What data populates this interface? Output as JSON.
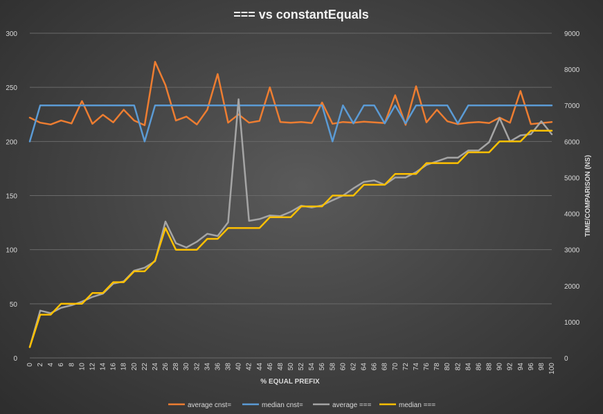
{
  "chart_data": {
    "type": "line",
    "title": "=== vs constantEquals",
    "xlabel": "% EQUAL PREFIX",
    "ylabel": "",
    "y2label": "TIME/COMPARISON (NS)",
    "x": [
      0,
      2,
      4,
      6,
      8,
      10,
      12,
      14,
      16,
      18,
      20,
      22,
      24,
      26,
      28,
      30,
      32,
      34,
      36,
      38,
      40,
      42,
      44,
      46,
      48,
      50,
      52,
      54,
      56,
      58,
      60,
      62,
      64,
      66,
      68,
      70,
      72,
      74,
      76,
      78,
      80,
      82,
      84,
      86,
      88,
      90,
      92,
      94,
      96,
      98,
      100
    ],
    "ylim": [
      0,
      300
    ],
    "y_ticks": [
      0,
      50,
      100,
      150,
      200,
      250,
      300
    ],
    "y2lim": [
      0,
      9000
    ],
    "y2_ticks": [
      0,
      1000,
      2000,
      3000,
      4000,
      5000,
      6000,
      7000,
      8000,
      9000
    ],
    "grid": true,
    "legend_position": "bottom",
    "series": [
      {
        "name": "average cnst=",
        "axis": "right",
        "color": "#ed7d31",
        "values": [
          6660,
          6520,
          6470,
          6580,
          6500,
          7120,
          6490,
          6740,
          6530,
          6880,
          6580,
          6450,
          8210,
          7560,
          6580,
          6690,
          6470,
          6880,
          7870,
          6520,
          6750,
          6520,
          6570,
          7500,
          6540,
          6520,
          6540,
          6510,
          7080,
          6490,
          6540,
          6520,
          6550,
          6530,
          6510,
          7280,
          6460,
          7530,
          6530,
          6880,
          6560,
          6480,
          6520,
          6540,
          6510,
          6660,
          6520,
          7400,
          6480,
          6510,
          6540
        ]
      },
      {
        "name": "median cnst=",
        "axis": "right",
        "color": "#5b9bd5",
        "values": [
          6000,
          7000,
          7000,
          7000,
          7000,
          7000,
          7000,
          7000,
          7000,
          7000,
          7000,
          6000,
          7000,
          7000,
          7000,
          7000,
          7000,
          7000,
          7000,
          7000,
          7000,
          7000,
          7000,
          7000,
          7000,
          7000,
          7000,
          7000,
          7000,
          6000,
          7000,
          6500,
          7000,
          7000,
          6500,
          7000,
          6500,
          7000,
          7000,
          7000,
          7000,
          6500,
          7000,
          7000,
          7000,
          7000,
          7000,
          7000,
          7000,
          7000,
          7000
        ]
      },
      {
        "name": "average ===",
        "axis": "right",
        "color": "#a5a5a5",
        "values": [
          300,
          1310,
          1240,
          1390,
          1460,
          1560,
          1690,
          1780,
          2060,
          2120,
          2420,
          2500,
          2680,
          3780,
          3180,
          3060,
          3220,
          3440,
          3380,
          3760,
          7170,
          3800,
          3850,
          3950,
          3930,
          4050,
          4220,
          4170,
          4230,
          4370,
          4500,
          4700,
          4880,
          4920,
          4800,
          5000,
          5000,
          5150,
          5350,
          5450,
          5550,
          5550,
          5750,
          5750,
          5980,
          6650,
          6000,
          6170,
          6200,
          6560,
          6200
        ]
      },
      {
        "name": "median ===",
        "axis": "right",
        "color": "#ffc000",
        "values": [
          300,
          1200,
          1200,
          1500,
          1500,
          1500,
          1800,
          1800,
          2100,
          2100,
          2400,
          2400,
          2700,
          3600,
          3000,
          3000,
          3000,
          3300,
          3300,
          3600,
          3600,
          3600,
          3600,
          3900,
          3900,
          3900,
          4200,
          4200,
          4200,
          4500,
          4500,
          4500,
          4800,
          4800,
          4800,
          5100,
          5100,
          5100,
          5400,
          5400,
          5400,
          5400,
          5700,
          5700,
          5700,
          6000,
          6000,
          6000,
          6300,
          6300,
          6300
        ]
      }
    ]
  }
}
